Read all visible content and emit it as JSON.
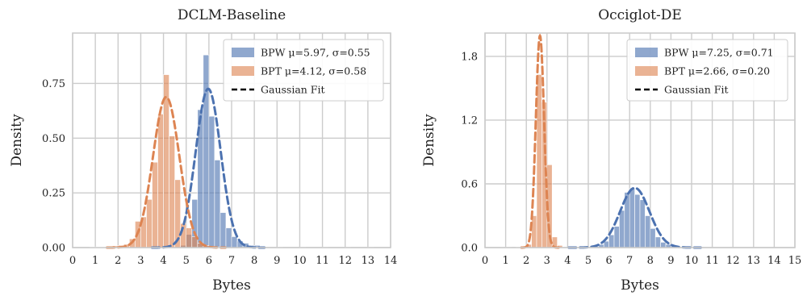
{
  "chart_data": [
    {
      "type": "bar",
      "title": "DCLM-Baseline",
      "xlabel": "Bytes",
      "ylabel": "Density",
      "xlim": [
        0,
        14
      ],
      "ylim": [
        0,
        0.98
      ],
      "xticks": [
        "0",
        "1",
        "2",
        "3",
        "4",
        "5",
        "6",
        "7",
        "8",
        "9",
        "10",
        "11",
        "12",
        "13",
        "14"
      ],
      "yticks": [
        "0.00",
        "0.25",
        "0.50",
        "0.75"
      ],
      "grid": true,
      "legend_position": "top-right",
      "colors": {
        "bpw": "#4c72b0",
        "bpt": "#dd8452",
        "fit": "#000000"
      },
      "legend": [
        {
          "label": "BPW",
          "stats": "μ=5.97, σ=0.55"
        },
        {
          "label": "BPT",
          "stats": "μ=4.12, σ=0.58"
        },
        {
          "label": "Gaussian Fit",
          "stats": ""
        }
      ],
      "series": [
        {
          "name": "BPW",
          "mean": 5.97,
          "std": 0.55,
          "bin_width": 0.25,
          "bins": [
            [
              4.75,
              0.01
            ],
            [
              5.0,
              0.06
            ],
            [
              5.25,
              0.22
            ],
            [
              5.5,
              0.63
            ],
            [
              5.75,
              0.88
            ],
            [
              6.0,
              0.6
            ],
            [
              6.25,
              0.4
            ],
            [
              6.5,
              0.16
            ],
            [
              6.75,
              0.09
            ],
            [
              7.0,
              0.05
            ],
            [
              7.25,
              0.03
            ],
            [
              7.5,
              0.02
            ],
            [
              7.75,
              0.01
            ],
            [
              8.0,
              0.01
            ]
          ]
        },
        {
          "name": "BPT",
          "mean": 4.12,
          "std": 0.58,
          "bin_width": 0.25,
          "bins": [
            [
              0.75,
              0.003
            ],
            [
              1.0,
              0.003
            ],
            [
              1.25,
              0.003
            ],
            [
              1.5,
              0.005
            ],
            [
              1.75,
              0.008
            ],
            [
              2.0,
              0.01
            ],
            [
              2.25,
              0.015
            ],
            [
              2.5,
              0.04
            ],
            [
              2.75,
              0.12
            ],
            [
              3.0,
              0.14
            ],
            [
              3.25,
              0.22
            ],
            [
              3.5,
              0.39
            ],
            [
              3.75,
              0.61
            ],
            [
              4.0,
              0.79
            ],
            [
              4.25,
              0.51
            ],
            [
              4.5,
              0.31
            ],
            [
              4.75,
              0.11
            ],
            [
              5.0,
              0.09
            ],
            [
              5.25,
              0.05
            ],
            [
              5.5,
              0.02
            ],
            [
              5.75,
              0.01
            ],
            [
              6.0,
              0.005
            ],
            [
              6.25,
              0.003
            ],
            [
              8.0,
              0.002
            ],
            [
              9.0,
              0.002
            ],
            [
              10.0,
              0.002
            ],
            [
              11.0,
              0.002
            ],
            [
              12.0,
              0.002
            ],
            [
              13.0,
              0.002
            ]
          ]
        }
      ]
    },
    {
      "type": "bar",
      "title": "Occiglot-DE",
      "xlabel": "Bytes",
      "ylabel": "Density",
      "xlim": [
        0,
        15
      ],
      "ylim": [
        0,
        2.02
      ],
      "xticks": [
        "0",
        "1",
        "2",
        "3",
        "4",
        "5",
        "6",
        "7",
        "8",
        "9",
        "10",
        "11",
        "12",
        "13",
        "14",
        "15"
      ],
      "yticks": [
        "0.0",
        "0.6",
        "1.2",
        "1.8"
      ],
      "grid": true,
      "legend_position": "top-right",
      "colors": {
        "bpw": "#4c72b0",
        "bpt": "#dd8452",
        "fit": "#000000"
      },
      "legend": [
        {
          "label": "BPW",
          "stats": "μ=7.25, σ=0.71"
        },
        {
          "label": "BPT",
          "stats": "μ=2.66, σ=0.20"
        },
        {
          "label": "Gaussian Fit",
          "stats": ""
        }
      ],
      "series": [
        {
          "name": "BPW",
          "mean": 7.25,
          "std": 0.71,
          "bin_width": 0.25,
          "bins": [
            [
              5.25,
              0.01
            ],
            [
              5.5,
              0.03
            ],
            [
              5.75,
              0.06
            ],
            [
              6.0,
              0.12
            ],
            [
              6.25,
              0.2
            ],
            [
              6.5,
              0.35
            ],
            [
              6.75,
              0.52
            ],
            [
              7.0,
              0.56
            ],
            [
              7.25,
              0.5
            ],
            [
              7.5,
              0.45
            ],
            [
              7.75,
              0.3
            ],
            [
              8.0,
              0.18
            ],
            [
              8.25,
              0.1
            ],
            [
              8.5,
              0.05
            ],
            [
              8.75,
              0.03
            ],
            [
              9.0,
              0.015
            ],
            [
              9.25,
              0.008
            ]
          ]
        },
        {
          "name": "BPT",
          "mean": 2.66,
          "std": 0.2,
          "bin_width": 0.25,
          "bins": [
            [
              0.75,
              0.003
            ],
            [
              1.0,
              0.003
            ],
            [
              1.5,
              0.005
            ],
            [
              2.0,
              0.03
            ],
            [
              2.25,
              0.3
            ],
            [
              2.5,
              1.63
            ],
            [
              2.75,
              1.37
            ],
            [
              3.0,
              0.78
            ],
            [
              3.25,
              0.1
            ],
            [
              3.5,
              0.02
            ]
          ]
        }
      ]
    }
  ]
}
